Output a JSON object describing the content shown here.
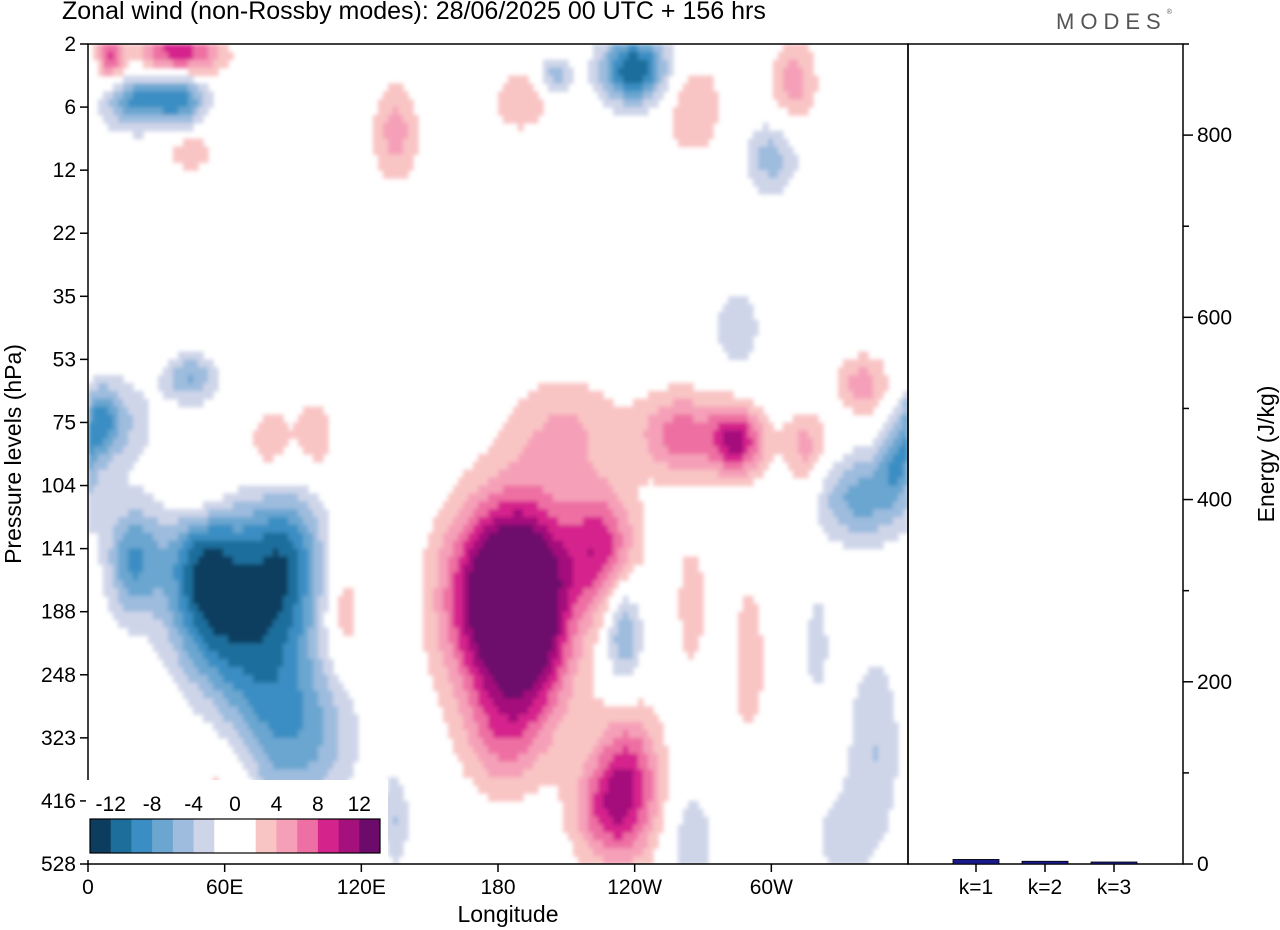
{
  "header": {
    "title": "Zonal wind (non-Rossby modes):  28/06/2025  00 UTC  + 156 hrs",
    "logo": "MODES"
  },
  "chart_data": [
    {
      "type": "heatmap",
      "title": "Zonal wind (non-Rossby modes):  28/06/2025  00 UTC  + 156 hrs",
      "xlabel": "Longitude",
      "ylabel": "Pressure levels (hPa)",
      "x_ticks": [
        "0",
        "60E",
        "120E",
        "180",
        "120W",
        "60W"
      ],
      "x_tick_values": [
        0,
        60,
        120,
        180,
        240,
        300
      ],
      "xlim": [
        0,
        360
      ],
      "y_ticks": [
        "2",
        "6",
        "12",
        "22",
        "35",
        "53",
        "75",
        "104",
        "141",
        "188",
        "248",
        "323",
        "416",
        "528"
      ],
      "y_order": "top-to-bottom",
      "colorbar": {
        "labels": [
          "-12",
          "-8",
          "-4",
          "0",
          "4",
          "8",
          "12"
        ],
        "colors": [
          "#0d3d5e",
          "#1e6e9c",
          "#3b8ec3",
          "#6aa6d0",
          "#9dbcde",
          "#cfd5e9",
          "#ffffff",
          "#ffffff",
          "#f9c4c4",
          "#f5a0b8",
          "#ee6fa3",
          "#d5238c",
          "#a5117c",
          "#6d0b6c"
        ]
      },
      "blobs": [
        {
          "lon": 10,
          "lev": 0.2,
          "v": 8,
          "rx": 6,
          "ry": 0.45
        },
        {
          "lon": 40,
          "lev": 0.15,
          "v": 10,
          "rx": 18,
          "ry": 0.4
        },
        {
          "lon": 20,
          "lev": 0.9,
          "v": -8,
          "rx": 14,
          "ry": 0.45
        },
        {
          "lon": 40,
          "lev": 0.85,
          "v": -9,
          "rx": 12,
          "ry": 0.45
        },
        {
          "lon": 240,
          "lev": 0.4,
          "v": -12,
          "rx": 15,
          "ry": 0.55
        },
        {
          "lon": 205,
          "lev": 0.5,
          "v": -5,
          "rx": 8,
          "ry": 0.3
        },
        {
          "lon": 265,
          "lev": 1.0,
          "v": 4,
          "rx": 14,
          "ry": 0.8
        },
        {
          "lon": 310,
          "lev": 0.6,
          "v": 5,
          "rx": 10,
          "ry": 0.7
        },
        {
          "lon": 190,
          "lev": 0.9,
          "v": 4,
          "rx": 12,
          "ry": 0.5
        },
        {
          "lon": 135,
          "lev": 1.4,
          "v": 5,
          "rx": 10,
          "ry": 0.8
        },
        {
          "lon": 300,
          "lev": 1.8,
          "v": -5,
          "rx": 12,
          "ry": 0.6
        },
        {
          "lon": 45,
          "lev": 1.7,
          "v": 4,
          "rx": 10,
          "ry": 0.3
        },
        {
          "lon": 5,
          "lev": 6.0,
          "v": -7,
          "rx": 8,
          "ry": 0.6
        },
        {
          "lon": 45,
          "lev": 5.3,
          "v": -6,
          "rx": 12,
          "ry": 0.4
        },
        {
          "lon": 15,
          "lev": 6.0,
          "v": -4,
          "rx": 14,
          "ry": 0.7
        },
        {
          "lon": 80,
          "lev": 6.4,
          "v": 4,
          "rx": 12,
          "ry": 0.7
        },
        {
          "lon": 50,
          "lev": 7.1,
          "v": 5,
          "rx": 14,
          "ry": 0.6
        },
        {
          "lon": 100,
          "lev": 6.2,
          "v": 4,
          "rx": 8,
          "ry": 0.6
        },
        {
          "lon": 285,
          "lev": 4.5,
          "v": -4,
          "rx": 10,
          "ry": 0.6
        },
        {
          "lon": 340,
          "lev": 5.4,
          "v": 5,
          "rx": 12,
          "ry": 0.5
        },
        {
          "lon": 210,
          "lev": 6.1,
          "v": 4,
          "rx": 25,
          "ry": 0.9
        },
        {
          "lon": 260,
          "lev": 6.2,
          "v": 7,
          "rx": 18,
          "ry": 0.7
        },
        {
          "lon": 285,
          "lev": 6.3,
          "v": 10,
          "rx": 12,
          "ry": 0.55
        },
        {
          "lon": 315,
          "lev": 6.4,
          "v": 5,
          "rx": 10,
          "ry": 0.6
        },
        {
          "lon": 340,
          "lev": 7.2,
          "v": -7,
          "rx": 20,
          "ry": 0.7
        },
        {
          "lon": 355,
          "lev": 6.6,
          "v": -6,
          "rx": 8,
          "ry": 0.6
        },
        {
          "lon": 20,
          "lev": 8.2,
          "v": -8,
          "rx": 12,
          "ry": 0.9
        },
        {
          "lon": 52,
          "lev": 8.3,
          "v": -12,
          "rx": 18,
          "ry": 1.2
        },
        {
          "lon": 85,
          "lev": 8.2,
          "v": -10,
          "rx": 18,
          "ry": 1.2
        },
        {
          "lon": 80,
          "lev": 10.3,
          "v": -7,
          "rx": 22,
          "ry": 1.8
        },
        {
          "lon": 100,
          "lev": 11.0,
          "v": -4,
          "rx": 20,
          "ry": 1.2
        },
        {
          "lon": 60,
          "lev": 9.5,
          "v": -5,
          "rx": 22,
          "ry": 1.0
        },
        {
          "lon": 112,
          "lev": 9.0,
          "v": 4,
          "rx": 8,
          "ry": 0.9
        },
        {
          "lon": 180,
          "lev": 8.6,
          "v": 13,
          "rx": 24,
          "ry": 1.4
        },
        {
          "lon": 195,
          "lev": 8.8,
          "v": 9,
          "rx": 18,
          "ry": 1.6
        },
        {
          "lon": 185,
          "lev": 10.0,
          "v": 6,
          "rx": 25,
          "ry": 1.5
        },
        {
          "lon": 182,
          "lev": 11.1,
          "v": 3,
          "rx": 16,
          "ry": 0.8
        },
        {
          "lon": 225,
          "lev": 8.0,
          "v": 9,
          "rx": 16,
          "ry": 1.0
        },
        {
          "lon": 235,
          "lev": 9.3,
          "v": -7,
          "rx": 8,
          "ry": 0.9
        },
        {
          "lon": 237,
          "lev": 11.7,
          "v": 9,
          "rx": 15,
          "ry": 1.2
        },
        {
          "lon": 225,
          "lev": 12.2,
          "v": 5,
          "rx": 15,
          "ry": 0.8
        },
        {
          "lon": 290,
          "lev": 9.8,
          "v": 3,
          "rx": 9,
          "ry": 1.6
        },
        {
          "lon": 345,
          "lev": 11.2,
          "v": -4,
          "rx": 12,
          "ry": 1.6
        },
        {
          "lon": 265,
          "lev": 8.9,
          "v": 4,
          "rx": 6,
          "ry": 1.0
        },
        {
          "lon": 320,
          "lev": 9.5,
          "v": -3,
          "rx": 6,
          "ry": 1.0
        },
        {
          "lon": 60,
          "lev": 12.0,
          "v": 4,
          "rx": 14,
          "ry": 0.9
        },
        {
          "lon": 135,
          "lev": 12.3,
          "v": -4,
          "rx": 6,
          "ry": 0.8
        },
        {
          "lon": 265,
          "lev": 12.8,
          "v": -4,
          "rx": 10,
          "ry": 1.0
        },
        {
          "lon": 330,
          "lev": 12.6,
          "v": -3,
          "rx": 12,
          "ry": 0.8
        }
      ]
    },
    {
      "type": "bar",
      "categories": [
        "k=1",
        "k=2",
        "k=3"
      ],
      "values": [
        5,
        3,
        2
      ],
      "ylabel": "Energy (J/kg)",
      "ylim": [
        0,
        900
      ],
      "y_ticks": [
        0,
        200,
        400,
        600,
        800
      ],
      "bar_color": "#1a1a8c"
    }
  ]
}
